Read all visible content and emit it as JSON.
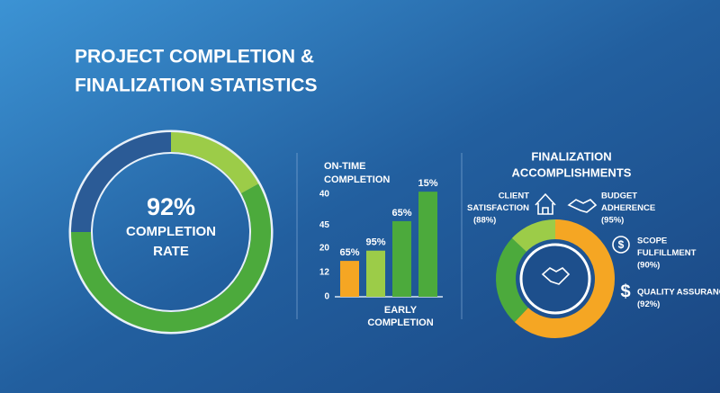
{
  "header": {
    "title": [
      "PROJECT COMPLETION &",
      "FINALIZATION STATISTICS"
    ]
  },
  "chart_data": [
    {
      "type": "donut",
      "values": [
        17,
        58,
        25
      ],
      "colors": [
        "#9ccc48",
        "#4caa3c",
        "#2b5b96"
      ],
      "center_text": [
        "92%",
        "COMPLETION",
        "RATE"
      ]
    },
    {
      "type": "bar",
      "title": [
        "ON-TIME",
        "COMPLETION"
      ],
      "x_label": [
        "EARLY",
        "COMPLETION"
      ],
      "values": [
        14,
        18,
        29.5,
        41
      ],
      "colors": [
        "#f5a623",
        "#9ccc48",
        "#4caa3c",
        "#4caa3c"
      ],
      "bar_labels": [
        "65%",
        "95%",
        "65%",
        "15%"
      ],
      "ylim": [
        0,
        42
      ],
      "yticks": [
        0,
        {
          "value": 9.5,
          "label": "12"
        },
        {
          "value": 19,
          "label": "20"
        },
        {
          "value": 28,
          "label": "45"
        },
        40
      ]
    },
    {
      "type": "donut",
      "title": [
        "FINALIZATION",
        "ACCOMPLISHMENTS"
      ],
      "values": [
        62,
        25,
        13
      ],
      "colors": [
        "#f5a623",
        "#4caa3c",
        "#9ccc48"
      ],
      "items": [
        [
          "CLIENT",
          "SATISFACTION",
          "(88%)"
        ],
        [
          "BUDGET",
          "ADHERENCE",
          "(95%)"
        ],
        [
          "SCOPE",
          "FULFILLMENT",
          "(90%)"
        ],
        [
          "QUALITY ASSURANCE",
          "(92%)"
        ]
      ]
    }
  ]
}
